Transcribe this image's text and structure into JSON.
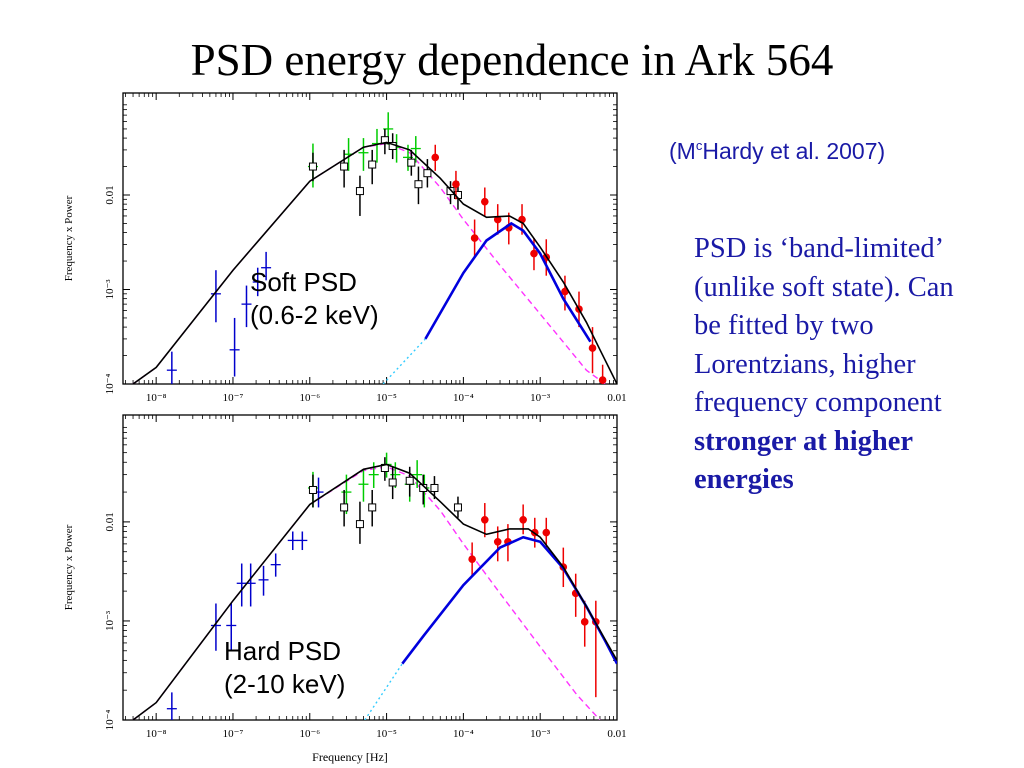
{
  "slide": {
    "title": "PSD energy dependence in Ark 564",
    "citation_pre": "(M",
    "citation_sup": "c",
    "citation_post": "Hardy et al. 2007)",
    "description": "PSD is ‘band-limited’ (unlike soft state). Can be fitted by two Lorentzians, higher frequency component",
    "description_bold": "stronger at higher energies"
  },
  "colors": {
    "text_blue": "#1a1aa6",
    "model_total": "#000000",
    "low_freq_lorentzian": "#ff33ff",
    "high_freq_lorentzian": "#0000dd",
    "high_freq_extension": "#33ccff",
    "data_blue": "#0000cc",
    "data_green": "#00cc00",
    "data_black": "#000000",
    "data_red": "#ee0000"
  },
  "chart_data": [
    {
      "type": "scatter",
      "panel_label": "Soft PSD\n(0.6-2 keV)",
      "panel_label_lines": [
        "Soft PSD",
        "(0.6-2 keV)"
      ],
      "xlabel": "",
      "ylabel": "Frequency x Power",
      "x_scale": "log",
      "y_scale": "log",
      "xlim": [
        3.7e-09,
        0.01
      ],
      "ylim": [
        0.0001,
        0.12
      ],
      "x_tick_labels": [
        "10⁻⁸",
        "10⁻⁷",
        "10⁻⁶",
        "10⁻⁵",
        "10⁻⁴",
        "10⁻³",
        "0.01"
      ],
      "x_ticks": [
        1e-08,
        1e-07,
        1e-06,
        1e-05,
        0.0001,
        0.001,
        0.01
      ],
      "y_tick_labels": [
        "10⁻⁴",
        "10⁻³",
        "0.01"
      ],
      "y_ticks": [
        0.0001,
        0.001,
        0.01
      ],
      "series": [
        {
          "color": "data_blue",
          "marker": "cross",
          "points": [
            [
              1.6e-08,
              0.00014
            ],
            [
              6e-08,
              0.0009
            ],
            [
              1.05e-07,
              0.00023
            ],
            [
              1.5e-07,
              0.0007
            ],
            [
              2.1e-07,
              0.0012
            ],
            [
              2.7e-07,
              0.0017
            ]
          ],
          "err_lo": [
            9e-05,
            0.00045,
            0.00012,
            0.0004,
            0.00085,
            0.00125
          ],
          "err_hi": [
            0.00022,
            0.0016,
            0.0005,
            0.0011,
            0.0017,
            0.0025
          ]
        },
        {
          "color": "data_green",
          "marker": "cross",
          "points": [
            [
              1.1e-06,
              0.02
            ],
            [
              3.2e-06,
              0.027
            ],
            [
              5e-06,
              0.028
            ],
            [
              7.5e-06,
              0.035
            ],
            [
              1.05e-05,
              0.05
            ],
            [
              1.35e-05,
              0.032
            ],
            [
              1.9e-05,
              0.025
            ],
            [
              2.4e-05,
              0.031
            ]
          ],
          "err_lo": [
            0.012,
            0.018,
            0.018,
            0.022,
            0.034,
            0.022,
            0.018,
            0.022
          ],
          "err_hi": [
            0.035,
            0.04,
            0.04,
            0.05,
            0.075,
            0.044,
            0.034,
            0.042
          ]
        },
        {
          "color": "data_black",
          "marker": "square",
          "points": [
            [
              1.1e-06,
              0.02
            ],
            [
              2.8e-06,
              0.02
            ],
            [
              4.5e-06,
              0.011
            ],
            [
              6.5e-06,
              0.021
            ],
            [
              9.5e-06,
              0.038
            ],
            [
              1.2e-05,
              0.033
            ],
            [
              2.1e-05,
              0.022
            ],
            [
              2.6e-05,
              0.013
            ],
            [
              3.4e-05,
              0.017
            ],
            [
              6.8e-05,
              0.011
            ],
            [
              8.5e-05,
              0.01
            ]
          ],
          "err_lo": [
            0.014,
            0.012,
            0.006,
            0.013,
            0.027,
            0.024,
            0.016,
            0.008,
            0.012,
            0.008,
            0.007
          ],
          "err_hi": [
            0.028,
            0.03,
            0.016,
            0.03,
            0.05,
            0.045,
            0.03,
            0.02,
            0.024,
            0.014,
            0.014
          ]
        },
        {
          "color": "data_red",
          "marker": "dot",
          "points": [
            [
              4.3e-05,
              0.025
            ],
            [
              8e-05,
              0.013
            ],
            [
              0.00014,
              0.0035
            ],
            [
              0.00019,
              0.0085
            ],
            [
              0.00028,
              0.0055
            ],
            [
              0.00039,
              0.0045
            ],
            [
              0.00058,
              0.0055
            ],
            [
              0.00083,
              0.0024
            ],
            [
              0.0012,
              0.0022
            ],
            [
              0.0021,
              0.00095
            ],
            [
              0.0032,
              0.00062
            ],
            [
              0.0048,
              0.00024
            ],
            [
              0.0065,
              0.00011
            ]
          ],
          "err_lo": [
            0.018,
            0.009,
            0.0022,
            0.006,
            0.0038,
            0.003,
            0.0038,
            0.0016,
            0.0014,
            0.0006,
            0.0004,
            0.00013,
            7e-05
          ],
          "err_hi": [
            0.034,
            0.018,
            0.0055,
            0.012,
            0.008,
            0.0065,
            0.008,
            0.0035,
            0.0034,
            0.0014,
            0.00095,
            0.0004,
            0.00016
          ]
        }
      ],
      "model_total": [
        [
          5e-09,
          0.0001
        ],
        [
          1e-08,
          0.00015
        ],
        [
          1e-07,
          0.0016
        ],
        [
          1e-06,
          0.014
        ],
        [
          5e-06,
          0.032
        ],
        [
          1e-05,
          0.036
        ],
        [
          2e-05,
          0.03
        ],
        [
          5e-05,
          0.015
        ],
        [
          0.0001,
          0.008
        ],
        [
          0.0002,
          0.0058
        ],
        [
          0.0004,
          0.006
        ],
        [
          0.0006,
          0.005
        ],
        [
          0.001,
          0.0028
        ],
        [
          0.002,
          0.0012
        ],
        [
          0.004,
          0.00045
        ],
        [
          0.006,
          0.00023
        ],
        [
          0.01,
          0.0001
        ]
      ],
      "model_low_freq": [
        [
          5e-09,
          0.0001
        ],
        [
          1e-08,
          0.00015
        ],
        [
          1e-07,
          0.0016
        ],
        [
          1e-06,
          0.014
        ],
        [
          5e-06,
          0.032
        ],
        [
          1e-05,
          0.035
        ],
        [
          2e-05,
          0.028
        ],
        [
          5e-05,
          0.012
        ],
        [
          0.0001,
          0.0055
        ],
        [
          0.0003,
          0.0018
        ],
        [
          0.001,
          0.00055
        ],
        [
          0.004,
          0.00014
        ],
        [
          0.007,
          0.0001
        ]
      ],
      "model_high_freq": [
        [
          3.2e-05,
          0.0003
        ],
        [
          0.0001,
          0.0015
        ],
        [
          0.0002,
          0.0033
        ],
        [
          0.00042,
          0.005
        ],
        [
          0.0006,
          0.0042
        ],
        [
          0.001,
          0.0024
        ],
        [
          0.002,
          0.0008
        ],
        [
          0.0045,
          0.00028
        ]
      ],
      "model_high_freq_extension": [
        [
          9e-06,
          0.0001
        ],
        [
          3.2e-05,
          0.0003
        ]
      ]
    },
    {
      "type": "scatter",
      "panel_label": "Hard PSD\n(2-10 keV)",
      "panel_label_lines": [
        "Hard PSD",
        "(2-10 keV)"
      ],
      "xlabel": "Frequency [Hz]",
      "ylabel": "Frequency x Power",
      "x_scale": "log",
      "y_scale": "log",
      "xlim": [
        3.7e-09,
        0.01
      ],
      "ylim": [
        0.0001,
        0.12
      ],
      "x_tick_labels": [
        "10⁻⁸",
        "10⁻⁷",
        "10⁻⁶",
        "10⁻⁵",
        "10⁻⁴",
        "10⁻³",
        "0.01"
      ],
      "x_ticks": [
        1e-08,
        1e-07,
        1e-06,
        1e-05,
        0.0001,
        0.001,
        0.01
      ],
      "y_tick_labels": [
        "10⁻⁴",
        "10⁻³",
        "0.01"
      ],
      "y_ticks": [
        0.0001,
        0.001,
        0.01
      ],
      "series": [
        {
          "color": "data_blue",
          "marker": "cross",
          "points": [
            [
              1.6e-08,
              0.00013
            ],
            [
              6e-08,
              0.0009
            ],
            [
              9.5e-08,
              0.0009
            ],
            [
              1.3e-07,
              0.0024
            ],
            [
              1.7e-07,
              0.0024
            ],
            [
              2.5e-07,
              0.0026
            ],
            [
              3.6e-07,
              0.0037
            ],
            [
              6e-07,
              0.0065
            ],
            [
              8e-07,
              0.0065
            ],
            [
              1.3e-06,
              0.02
            ]
          ],
          "err_lo": [
            8e-05,
            0.0005,
            0.0005,
            0.0014,
            0.0014,
            0.0018,
            0.0028,
            0.0052,
            0.0052,
            0.014
          ],
          "err_hi": [
            0.00019,
            0.0015,
            0.0015,
            0.0038,
            0.0038,
            0.0036,
            0.0048,
            0.008,
            0.008,
            0.028
          ]
        },
        {
          "color": "data_green",
          "marker": "cross",
          "points": [
            [
              1.1e-06,
              0.022
            ],
            [
              3e-06,
              0.02
            ],
            [
              5e-06,
              0.024
            ],
            [
              6.8e-06,
              0.03
            ],
            [
              1e-05,
              0.038
            ],
            [
              1.3e-05,
              0.03
            ],
            [
              2e-05,
              0.024
            ],
            [
              2.5e-05,
              0.03
            ],
            [
              3.1e-05,
              0.022
            ]
          ],
          "err_lo": [
            0.014,
            0.012,
            0.016,
            0.022,
            0.028,
            0.022,
            0.016,
            0.022,
            0.014
          ],
          "err_hi": [
            0.032,
            0.03,
            0.034,
            0.04,
            0.05,
            0.04,
            0.034,
            0.042,
            0.03
          ]
        },
        {
          "color": "data_black",
          "marker": "square",
          "points": [
            [
              1.1e-06,
              0.021
            ],
            [
              2.8e-06,
              0.014
            ],
            [
              4.5e-06,
              0.0095
            ],
            [
              6.5e-06,
              0.014
            ],
            [
              9.5e-06,
              0.035
            ],
            [
              1.2e-05,
              0.025
            ],
            [
              2e-05,
              0.026
            ],
            [
              3e-05,
              0.022
            ],
            [
              4.2e-05,
              0.022
            ],
            [
              8.5e-05,
              0.014
            ]
          ],
          "err_lo": [
            0.014,
            0.009,
            0.006,
            0.009,
            0.026,
            0.017,
            0.018,
            0.015,
            0.017,
            0.011
          ],
          "err_hi": [
            0.03,
            0.021,
            0.016,
            0.021,
            0.045,
            0.036,
            0.036,
            0.03,
            0.029,
            0.018
          ]
        },
        {
          "color": "data_red",
          "marker": "dot",
          "points": [
            [
              0.00013,
              0.0042
            ],
            [
              0.00019,
              0.0105
            ],
            [
              0.00028,
              0.0063
            ],
            [
              0.00038,
              0.0063
            ],
            [
              0.0006,
              0.0105
            ],
            [
              0.00085,
              0.0078
            ],
            [
              0.0012,
              0.0078
            ],
            [
              0.002,
              0.0035
            ],
            [
              0.0029,
              0.0019
            ],
            [
              0.0038,
              0.00098
            ],
            [
              0.0053,
              0.00098
            ]
          ],
          "err_lo": [
            0.0028,
            0.007,
            0.004,
            0.004,
            0.0075,
            0.0055,
            0.0055,
            0.0022,
            0.0011,
            0.00055,
            0.00017
          ],
          "err_hi": [
            0.0062,
            0.0155,
            0.009,
            0.0095,
            0.015,
            0.011,
            0.011,
            0.0055,
            0.003,
            0.0016,
            0.0016
          ]
        }
      ],
      "model_total": [
        [
          5e-09,
          0.0001
        ],
        [
          1e-08,
          0.00015
        ],
        [
          1e-07,
          0.0016
        ],
        [
          1e-06,
          0.015
        ],
        [
          5e-06,
          0.034
        ],
        [
          1e-05,
          0.038
        ],
        [
          2e-05,
          0.031
        ],
        [
          5e-05,
          0.016
        ],
        [
          0.0001,
          0.0095
        ],
        [
          0.0002,
          0.0075
        ],
        [
          0.0004,
          0.0085
        ],
        [
          0.0007,
          0.0085
        ],
        [
          0.001,
          0.007
        ],
        [
          0.002,
          0.0035
        ],
        [
          0.004,
          0.0014
        ],
        [
          0.007,
          0.00065
        ],
        [
          0.01,
          0.0004
        ]
      ],
      "model_low_freq": [
        [
          5e-09,
          0.0001
        ],
        [
          1e-08,
          0.00015
        ],
        [
          1e-07,
          0.0016
        ],
        [
          1e-06,
          0.015
        ],
        [
          5e-06,
          0.033
        ],
        [
          1e-05,
          0.036
        ],
        [
          2e-05,
          0.029
        ],
        [
          5e-05,
          0.013
        ],
        [
          0.0001,
          0.006
        ],
        [
          0.0003,
          0.0019
        ],
        [
          0.001,
          0.00055
        ],
        [
          0.003,
          0.00018
        ],
        [
          0.006,
          0.0001
        ]
      ],
      "model_high_freq": [
        [
          1.6e-05,
          0.00037
        ],
        [
          3e-05,
          0.0007
        ],
        [
          0.0001,
          0.0023
        ],
        [
          0.0003,
          0.0055
        ],
        [
          0.0006,
          0.007
        ],
        [
          0.001,
          0.0063
        ],
        [
          0.002,
          0.0034
        ],
        [
          0.004,
          0.0014
        ],
        [
          0.007,
          0.00063
        ],
        [
          0.01,
          0.00037
        ]
      ],
      "model_high_freq_extension": [
        [
          5.2e-06,
          0.0001
        ],
        [
          1.6e-05,
          0.00037
        ]
      ]
    }
  ]
}
